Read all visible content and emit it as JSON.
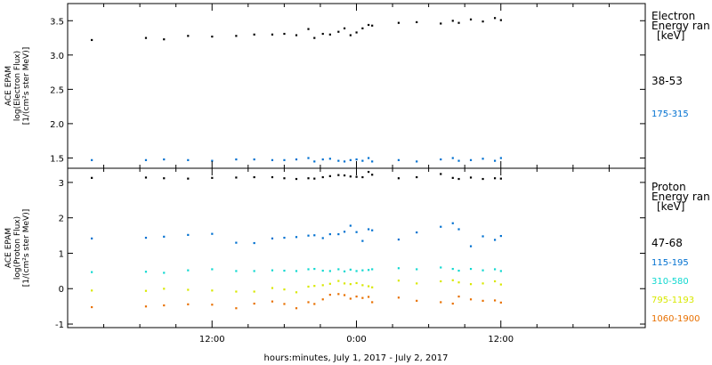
{
  "xlabel": "hours:minutes, July  1, 2017 - July  2, 2017",
  "x_ticks": [
    "12:00",
    "0:00",
    "12:00"
  ],
  "chart_data": [
    {
      "type": "scatter",
      "panel": "electron",
      "ylabel": [
        "ACE EPAM",
        "log(Electron Flux)",
        "[1/(cm²s ster MeV)]"
      ],
      "ylim": [
        1.35,
        3.75
      ],
      "yticks": [
        1.5,
        2.0,
        2.5,
        3.0,
        3.5
      ],
      "ytick_labels": [
        "1.5",
        "2.0",
        "2.5",
        "3.0",
        "3.5"
      ],
      "xlim_hours": [
        0,
        48
      ],
      "legend": {
        "title": [
          "Electron",
          "Energy ran",
          "[keV]"
        ],
        "entries": [
          {
            "label": "38-53",
            "color": "#000000"
          },
          {
            "label": "175-315",
            "color": "#0070d0"
          }
        ]
      },
      "series": [
        {
          "label_ref": "38-53",
          "color": "#000000",
          "x": [
            2.0,
            6.5,
            8.0,
            10.0,
            12.0,
            14.0,
            15.5,
            17.0,
            18.0,
            19.0,
            20.0,
            20.5,
            21.2,
            21.8,
            22.5,
            23.0,
            23.5,
            24.0,
            24.5,
            25.0,
            25.3,
            27.5,
            29.0,
            31.0,
            32.0,
            32.5,
            33.5,
            34.5,
            35.5,
            36.0
          ],
          "y": [
            3.22,
            3.25,
            3.23,
            3.28,
            3.27,
            3.28,
            3.3,
            3.3,
            3.31,
            3.29,
            3.38,
            3.25,
            3.31,
            3.3,
            3.34,
            3.39,
            3.29,
            3.33,
            3.39,
            3.44,
            3.43,
            3.47,
            3.48,
            3.46,
            3.5,
            3.47,
            3.52,
            3.49,
            3.54,
            3.51
          ]
        },
        {
          "label_ref": "175-315",
          "color": "#0070d0",
          "x": [
            2.0,
            6.5,
            8.0,
            10.0,
            12.0,
            14.0,
            15.5,
            17.0,
            18.0,
            19.0,
            20.0,
            20.5,
            21.2,
            21.8,
            22.5,
            23.0,
            23.5,
            24.0,
            24.5,
            25.0,
            25.3,
            27.5,
            29.0,
            31.0,
            32.0,
            32.5,
            33.5,
            34.5,
            35.5,
            36.0
          ],
          "y": [
            1.47,
            1.47,
            1.48,
            1.47,
            1.46,
            1.48,
            1.48,
            1.47,
            1.47,
            1.48,
            1.5,
            1.45,
            1.48,
            1.49,
            1.46,
            1.45,
            1.47,
            1.48,
            1.46,
            1.5,
            1.45,
            1.47,
            1.45,
            1.48,
            1.5,
            1.46,
            1.47,
            1.49,
            1.46,
            1.5
          ]
        }
      ]
    },
    {
      "type": "scatter",
      "panel": "proton",
      "ylabel": [
        "ACE EPAM",
        "log(Proton Flux)",
        "[1/(cm²s ster MeV)]"
      ],
      "ylim": [
        -1.1,
        3.4
      ],
      "yticks": [
        -1,
        0,
        1,
        2,
        3
      ],
      "ytick_labels": [
        "-1",
        "0",
        "1",
        "2",
        "3"
      ],
      "xlim_hours": [
        0,
        48
      ],
      "legend": {
        "title": [
          "Proton",
          "Energy ran",
          "[keV]"
        ],
        "entries": [
          {
            "label": "47-68",
            "color": "#000000"
          },
          {
            "label": "115-195",
            "color": "#0070d0"
          },
          {
            "label": "310-580",
            "color": "#10d8d0"
          },
          {
            "label": "795-1193",
            "color": "#d8e800"
          },
          {
            "label": "1060-1900",
            "color": "#e87000"
          }
        ]
      },
      "series": [
        {
          "label_ref": "47-68",
          "color": "#000000",
          "x": [
            2.0,
            6.5,
            8.0,
            10.0,
            12.0,
            14.0,
            15.5,
            17.0,
            18.0,
            19.0,
            20.0,
            20.5,
            21.2,
            21.8,
            22.5,
            23.0,
            23.5,
            24.0,
            24.5,
            25.0,
            25.3,
            27.5,
            29.0,
            31.0,
            32.0,
            32.5,
            33.5,
            34.5,
            35.5,
            36.0
          ],
          "y": [
            3.13,
            3.14,
            3.12,
            3.11,
            3.13,
            3.14,
            3.15,
            3.15,
            3.12,
            3.1,
            3.12,
            3.11,
            3.15,
            3.18,
            3.21,
            3.2,
            3.17,
            3.16,
            3.15,
            3.3,
            3.22,
            3.12,
            3.15,
            3.24,
            3.13,
            3.1,
            3.14,
            3.1,
            3.12,
            3.11
          ]
        },
        {
          "label_ref": "115-195",
          "color": "#0070d0",
          "x": [
            2.0,
            6.5,
            8.0,
            10.0,
            12.0,
            14.0,
            15.5,
            17.0,
            18.0,
            19.0,
            20.0,
            20.5,
            21.2,
            21.8,
            22.5,
            23.0,
            23.5,
            24.0,
            24.5,
            25.0,
            25.3,
            27.5,
            29.0,
            31.0,
            32.0,
            32.5,
            33.5,
            34.5,
            35.5,
            36.0
          ],
          "y": [
            1.42,
            1.44,
            1.47,
            1.52,
            1.55,
            1.3,
            1.29,
            1.42,
            1.44,
            1.46,
            1.5,
            1.51,
            1.43,
            1.54,
            1.54,
            1.61,
            1.78,
            1.6,
            1.35,
            1.68,
            1.65,
            1.39,
            1.59,
            1.75,
            1.85,
            1.68,
            1.2,
            1.48,
            1.38,
            1.49
          ]
        },
        {
          "label_ref": "310-580",
          "color": "#10d8d0",
          "x": [
            2.0,
            6.5,
            8.0,
            10.0,
            12.0,
            14.0,
            15.5,
            17.0,
            18.0,
            19.0,
            20.0,
            20.5,
            21.2,
            21.8,
            22.5,
            23.0,
            23.5,
            24.0,
            24.5,
            25.0,
            25.3,
            27.5,
            29.0,
            31.0,
            32.0,
            32.5,
            33.5,
            34.5,
            35.5,
            36.0
          ],
          "y": [
            0.47,
            0.48,
            0.45,
            0.52,
            0.55,
            0.5,
            0.5,
            0.52,
            0.51,
            0.5,
            0.55,
            0.56,
            0.51,
            0.5,
            0.55,
            0.49,
            0.54,
            0.5,
            0.52,
            0.53,
            0.55,
            0.58,
            0.55,
            0.6,
            0.56,
            0.51,
            0.56,
            0.52,
            0.55,
            0.5
          ]
        },
        {
          "label_ref": "795-1193",
          "color": "#d8e800",
          "x": [
            2.0,
            6.5,
            8.0,
            10.0,
            12.0,
            14.0,
            15.5,
            17.0,
            18.0,
            19.0,
            20.0,
            20.5,
            21.2,
            21.8,
            22.5,
            23.0,
            23.5,
            24.0,
            24.5,
            25.0,
            25.3,
            27.5,
            29.0,
            31.0,
            32.0,
            32.5,
            33.5,
            34.5,
            35.5,
            36.0
          ],
          "y": [
            -0.05,
            -0.06,
            0.0,
            -0.03,
            -0.05,
            -0.08,
            -0.08,
            0.02,
            -0.02,
            -0.1,
            0.06,
            0.08,
            0.1,
            0.14,
            0.22,
            0.15,
            0.13,
            0.16,
            0.1,
            0.07,
            0.04,
            0.23,
            0.15,
            0.21,
            0.24,
            0.18,
            0.13,
            0.15,
            0.21,
            0.12
          ]
        },
        {
          "label_ref": "1060-1900",
          "color": "#e87000",
          "x": [
            2.0,
            6.5,
            8.0,
            10.0,
            12.0,
            14.0,
            15.5,
            17.0,
            18.0,
            19.0,
            20.0,
            20.5,
            21.2,
            21.8,
            22.5,
            23.0,
            23.5,
            24.0,
            24.5,
            25.0,
            25.3,
            27.5,
            29.0,
            31.0,
            32.0,
            32.5,
            33.5,
            34.5,
            35.5,
            36.0
          ],
          "y": [
            -0.52,
            -0.5,
            -0.47,
            -0.44,
            -0.45,
            -0.55,
            -0.42,
            -0.36,
            -0.43,
            -0.55,
            -0.38,
            -0.43,
            -0.3,
            -0.17,
            -0.15,
            -0.18,
            -0.28,
            -0.22,
            -0.26,
            -0.23,
            -0.38,
            -0.25,
            -0.34,
            -0.38,
            -0.42,
            -0.22,
            -0.3,
            -0.34,
            -0.33,
            -0.39
          ]
        }
      ]
    }
  ]
}
